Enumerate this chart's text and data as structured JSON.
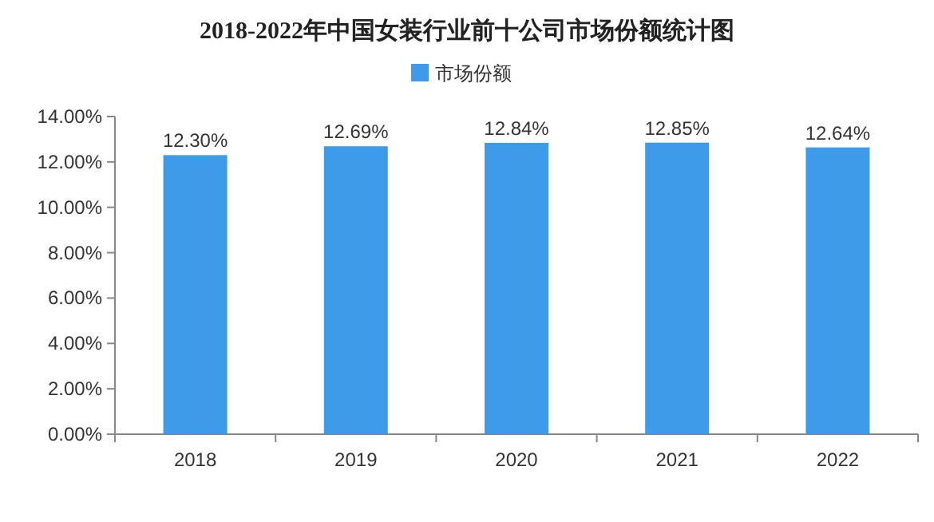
{
  "chart_data": {
    "type": "bar",
    "title": "2018-2022年中国女装行业前十公司市场份额统计图",
    "categories": [
      "2018",
      "2019",
      "2020",
      "2021",
      "2022"
    ],
    "series": [
      {
        "name": "市场份额",
        "color": "#3d9be9",
        "values": [
          12.3,
          12.69,
          12.84,
          12.85,
          12.64
        ],
        "value_labels": [
          "12.30%",
          "12.69%",
          "12.84%",
          "12.85%",
          "12.64%"
        ]
      }
    ],
    "ylim": [
      0,
      14
    ],
    "yticks": [
      {
        "value": 0,
        "label": "0.00%"
      },
      {
        "value": 2,
        "label": "2.00%"
      },
      {
        "value": 4,
        "label": "4.00%"
      },
      {
        "value": 6,
        "label": "6.00%"
      },
      {
        "value": 8,
        "label": "8.00%"
      },
      {
        "value": 10,
        "label": "10.00%"
      },
      {
        "value": 12,
        "label": "12.00%"
      },
      {
        "value": 14,
        "label": "14.00%"
      }
    ],
    "legend": "top",
    "grid": false
  }
}
